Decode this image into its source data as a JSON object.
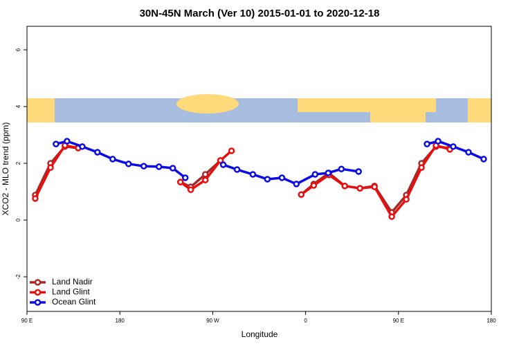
{
  "chart_data": {
    "type": "line",
    "title": "30N-45N March (Ver 10)   2015-01-01 to 2020-12-18",
    "xlabel": "Longitude",
    "ylabel": "XCO2 - MLO trend (ppm)",
    "xlim": [
      90,
      540
    ],
    "ylim": [
      -3.22,
      6.83
    ],
    "xticks": [
      {
        "value": 90,
        "label": "90 E"
      },
      180,
      {
        "value": 270,
        "label": "90 W"
      },
      {
        "value": 360,
        "label": "0"
      },
      {
        "value": 450,
        "label": "90 E"
      },
      {
        "value": 540,
        "label": "180"
      }
    ],
    "yticks": [
      -2,
      0,
      2,
      4,
      6
    ],
    "legend": "bottom-left",
    "series": [
      {
        "name": "Land Nadir",
        "color": "#a52a2a",
        "x": [
          98.0,
          112.8,
          126.8,
          139.6,
          null,
          238.7,
          248.7,
          262.8,
          277.5,
          null,
          355.8,
          367.9,
          382.6,
          398.0,
          412.7,
          426.8,
          443.5,
          457.6,
          472.3,
          486.4,
          499.8
        ],
        "values": [
          0.88,
          2.0,
          2.59,
          2.54,
          null,
          1.34,
          1.17,
          1.61,
          2.1,
          null,
          0.9,
          1.27,
          1.66,
          1.2,
          1.12,
          1.2,
          0.27,
          0.88,
          2.0,
          2.59,
          2.54
        ]
      },
      {
        "name": "Land Glint",
        "color": "#e8100f",
        "x": [
          98.0,
          112.8,
          126.8,
          139.6,
          null,
          238.7,
          248.7,
          262.8,
          277.5,
          288.2,
          null,
          355.8,
          367.9,
          382.6,
          398.0,
          412.7,
          426.8,
          443.5,
          457.6,
          472.3,
          486.4,
          499.8
        ],
        "values": [
          0.76,
          1.85,
          2.63,
          2.54,
          null,
          1.34,
          1.07,
          1.41,
          2.1,
          2.44,
          null,
          0.9,
          1.22,
          1.59,
          1.2,
          1.12,
          1.17,
          0.12,
          0.73,
          1.85,
          2.63,
          2.49
        ]
      },
      {
        "name": "Ocean Glint",
        "color": "#0a0ae6",
        "x": [
          118.1,
          128.8,
          143.6,
          158.3,
          173.0,
          188.4,
          203.2,
          217.9,
          231.3,
          243.4,
          null,
          280.2,
          293.6,
          308.9,
          323.0,
          337.1,
          351.1,
          369.2,
          381.9,
          394.7,
          411.4,
          null,
          477.7,
          488.4,
          503.1,
          517.9,
          532.6
        ],
        "values": [
          2.68,
          2.78,
          2.59,
          2.39,
          2.15,
          1.98,
          1.9,
          1.88,
          1.83,
          1.49,
          null,
          1.95,
          1.78,
          1.61,
          1.44,
          1.49,
          1.27,
          1.61,
          1.66,
          1.8,
          1.71,
          null,
          2.68,
          2.78,
          2.59,
          2.39,
          2.15
        ]
      }
    ]
  }
}
